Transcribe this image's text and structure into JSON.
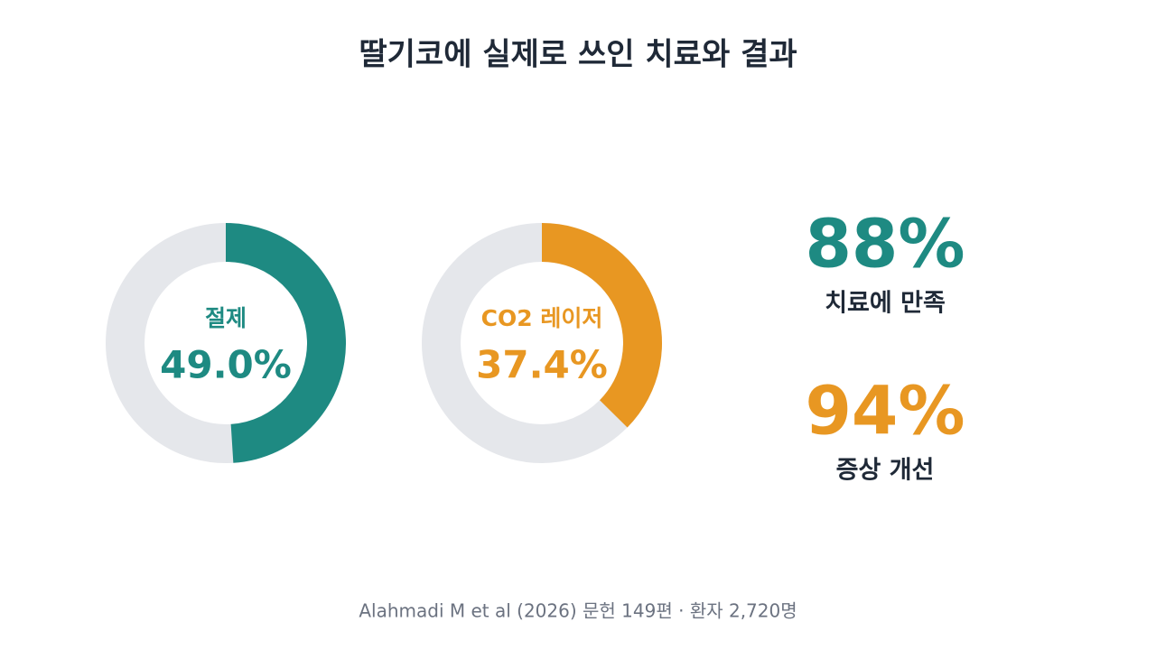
{
  "title": "딸기코에 실제로 쓰인 치료와 결과",
  "range": [
    0,
    100
  ],
  "donuts": [
    {
      "label": "절제",
      "value": 49.0,
      "value_label": "49.0%",
      "color": "#1e8a82"
    },
    {
      "label": "CO2 레이저",
      "value": 37.4,
      "value_label": "37.4%",
      "color": "#e89722"
    }
  ],
  "stats": [
    {
      "value": 88,
      "value_label": "88%",
      "label": "치료에 만족",
      "color": "#1e8a82"
    },
    {
      "value": 94,
      "value_label": "94%",
      "label": "증상 개선",
      "color": "#e89722"
    }
  ],
  "footer": "Alahmadi M et al (2026) 문헌 149편 · 환자 2,720명"
}
